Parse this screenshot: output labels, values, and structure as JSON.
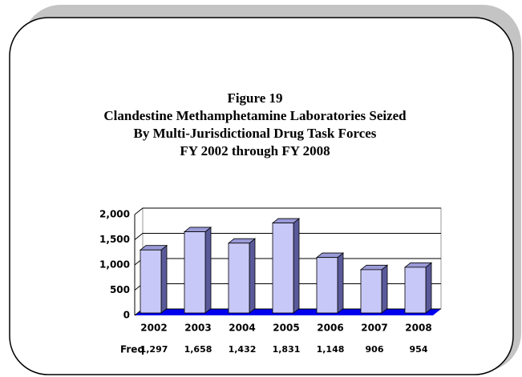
{
  "chart_data": {
    "type": "bar",
    "title": [
      "Figure 19",
      "Clandestine Methamphetamine Laboratories Seized",
      "By Multi-Jurisdictional Drug Task Forces",
      "FY 2002 through FY 2008"
    ],
    "categories": [
      "2002",
      "2003",
      "2004",
      "2005",
      "2006",
      "2007",
      "2008"
    ],
    "values": [
      1297,
      1658,
      1432,
      1831,
      1148,
      906,
      954
    ],
    "value_labels": [
      "1,297",
      "1,658",
      "1,432",
      "1,831",
      "1,148",
      "906",
      "954"
    ],
    "table_row_label": "Freq",
    "color": "#c8c8f8",
    "floor_color": "#0000ee",
    "ylim": [
      0,
      2000
    ],
    "yticks": [
      0,
      500,
      {
        "value": 1000,
        "label": "1,000"
      },
      {
        "value": 1500,
        "label": "1,500"
      },
      {
        "value": 2000,
        "label": "2,000"
      }
    ],
    "grid": true
  }
}
